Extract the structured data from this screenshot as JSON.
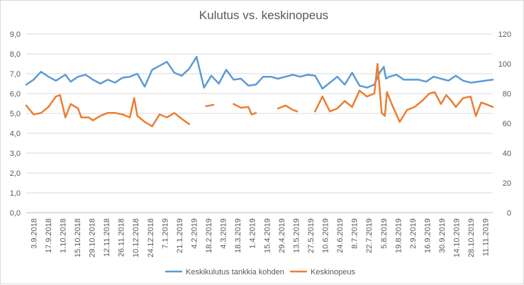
{
  "chart_data": {
    "type": "line",
    "title": "Kulutus vs. keskinopeus",
    "left_axis": {
      "ylim": [
        0,
        9
      ],
      "ticks": [
        "0,0",
        "1,0",
        "2,0",
        "3,0",
        "4,0",
        "5,0",
        "6,0",
        "7,0",
        "8,0",
        "9,0"
      ]
    },
    "right_axis": {
      "ylim": [
        0,
        120
      ],
      "ticks": [
        "0",
        "20",
        "40",
        "60",
        "80",
        "100",
        "120"
      ]
    },
    "x_tick_labels": [
      "3.9.2018",
      "17.9.2018",
      "1.10.2018",
      "15.10.2018",
      "29.10.2018",
      "12.11.2018",
      "26.11.2018",
      "10.12.2018",
      "24.12.2018",
      "7.1.2019",
      "21.1.2019",
      "4.2.2019",
      "18.2.2019",
      "4.3.2019",
      "18.3.2019",
      "1.4.2019",
      "15.4.2019",
      "29.4.2019",
      "13.5.2019",
      "27.5.2019",
      "10.6.2019",
      "24.6.2019",
      "8.7.2019",
      "22.7.2019",
      "5.8.2019",
      "19.8.2019",
      "2.9.2019",
      "16.9.2019",
      "30.9.2019",
      "14.10.2019",
      "28.10.2019",
      "11.11.2019"
    ],
    "x_range": [
      "3.9.2018",
      "18.11.2019"
    ],
    "grid": "horizontal",
    "legend_position": "bottom",
    "series": [
      {
        "name": "Keskikulutus tankkia kohden",
        "axis": "left",
        "color": "#5b9bd5",
        "points": [
          [
            "3.9.2018",
            6.45
          ],
          [
            "10.9.2018",
            6.7
          ],
          [
            "17.9.2018",
            7.1
          ],
          [
            "24.9.2018",
            6.85
          ],
          [
            "1.10.2018",
            6.65
          ],
          [
            "10.10.2018",
            6.95
          ],
          [
            "15.10.2018",
            6.6
          ],
          [
            "22.10.2018",
            6.85
          ],
          [
            "29.10.2018",
            6.95
          ],
          [
            "5.11.2018",
            6.7
          ],
          [
            "12.11.2018",
            6.5
          ],
          [
            "19.11.2018",
            6.7
          ],
          [
            "26.11.2018",
            6.55
          ],
          [
            "3.12.2018",
            6.8
          ],
          [
            "10.12.2018",
            6.85
          ],
          [
            "17.12.2018",
            7.0
          ],
          [
            "24.12.2018",
            6.35
          ],
          [
            "31.12.2018",
            7.2
          ],
          [
            "7.1.2019",
            7.4
          ],
          [
            "14.1.2019",
            7.6
          ],
          [
            "21.1.2019",
            7.05
          ],
          [
            "28.1.2019",
            6.9
          ],
          [
            "4.2.2019",
            7.25
          ],
          [
            "11.2.2019",
            7.85
          ],
          [
            "18.2.2019",
            6.3
          ],
          [
            "25.2.2019",
            6.9
          ],
          [
            "4.3.2019",
            6.5
          ],
          [
            "11.3.2019",
            7.2
          ],
          [
            "18.3.2019",
            6.7
          ],
          [
            "25.3.2019",
            6.75
          ],
          [
            "1.4.2019",
            6.4
          ],
          [
            "8.4.2019",
            6.45
          ],
          [
            "15.4.2019",
            6.85
          ],
          [
            "22.4.2019",
            6.85
          ],
          [
            "29.4.2019",
            6.75
          ],
          [
            "6.5.2019",
            6.85
          ],
          [
            "13.5.2019",
            6.95
          ],
          [
            "20.5.2019",
            6.85
          ],
          [
            "27.5.2019",
            6.95
          ],
          [
            "3.6.2019",
            6.9
          ],
          [
            "10.6.2019",
            6.25
          ],
          [
            "17.6.2019",
            6.55
          ],
          [
            "24.6.2019",
            6.85
          ],
          [
            "1.7.2019",
            6.45
          ],
          [
            "8.7.2019",
            7.05
          ],
          [
            "15.7.2019",
            6.4
          ],
          [
            "22.7.2019",
            6.3
          ],
          [
            "29.7.2019",
            6.45
          ],
          [
            "3.8.2019",
            7.05
          ],
          [
            "7.8.2019",
            7.35
          ],
          [
            "9.8.2019",
            6.75
          ],
          [
            "12.8.2019",
            6.85
          ],
          [
            "19.8.2019",
            6.95
          ],
          [
            "26.8.2019",
            6.7
          ],
          [
            "2.9.2019",
            6.7
          ],
          [
            "9.9.2019",
            6.7
          ],
          [
            "16.9.2019",
            6.6
          ],
          [
            "23.9.2019",
            6.85
          ],
          [
            "30.9.2019",
            6.75
          ],
          [
            "7.10.2019",
            6.65
          ],
          [
            "14.10.2019",
            6.9
          ],
          [
            "21.10.2019",
            6.65
          ],
          [
            "28.10.2019",
            6.55
          ],
          [
            "4.11.2019",
            6.6
          ],
          [
            "11.11.2019",
            6.65
          ],
          [
            "18.11.2019",
            6.7
          ]
        ]
      },
      {
        "name": "Keskinopeus",
        "axis": "right",
        "color": "#ed7d31",
        "points": [
          [
            "3.9.2018",
            72
          ],
          [
            "10.9.2018",
            66
          ],
          [
            "17.9.2018",
            67
          ],
          [
            "24.9.2018",
            71
          ],
          [
            "1.10.2018",
            78
          ],
          [
            "5.10.2018",
            79
          ],
          [
            "10.10.2018",
            64
          ],
          [
            "15.10.2018",
            73
          ],
          [
            "22.10.2018",
            70
          ],
          [
            "25.10.2018",
            64
          ],
          [
            "1.11.2018",
            64
          ],
          [
            "5.11.2018",
            62
          ],
          [
            "12.11.2018",
            65
          ],
          [
            "19.11.2018",
            67
          ],
          [
            "26.11.2018",
            67
          ],
          [
            "3.12.2018",
            66
          ],
          [
            "10.12.2018",
            64
          ],
          [
            "14.12.2018",
            77
          ],
          [
            "17.12.2018",
            65
          ],
          [
            "24.12.2018",
            61
          ],
          [
            "31.12.2018",
            58
          ],
          [
            "7.1.2019",
            66
          ],
          [
            "14.1.2019",
            64
          ],
          [
            "21.1.2019",
            67
          ],
          [
            "28.1.2019",
            63
          ],
          [
            "4.2.2019",
            59.5
          ],
          null,
          [
            "20.2.2019",
            71.5
          ],
          [
            "27.2.2019",
            72.5
          ],
          null,
          [
            "18.3.2019",
            73
          ],
          [
            "25.3.2019",
            70.5
          ],
          [
            "1.4.2019",
            71
          ],
          [
            "4.4.2019",
            66
          ],
          [
            "8.4.2019",
            67
          ],
          null,
          [
            "15.4.2019",
            68
          ],
          null,
          [
            "29.4.2019",
            70
          ],
          [
            "6.5.2019",
            72
          ],
          [
            "13.5.2019",
            69
          ],
          [
            "17.5.2019",
            68
          ],
          null,
          [
            "3.6.2019",
            68
          ],
          [
            "10.6.2019",
            78
          ],
          [
            "17.6.2019",
            68
          ],
          [
            "24.6.2019",
            70
          ],
          [
            "1.7.2019",
            75
          ],
          [
            "8.7.2019",
            71
          ],
          [
            "15.7.2019",
            82
          ],
          [
            "22.7.2019",
            78
          ],
          [
            "29.7.2019",
            80
          ],
          [
            "1.8.2019",
            100
          ],
          [
            "5.8.2019",
            67
          ],
          [
            "8.8.2019",
            65
          ],
          [
            "10.8.2019",
            81
          ],
          [
            "15.8.2019",
            72
          ],
          [
            "22.8.2019",
            61
          ],
          [
            "29.8.2019",
            69
          ],
          [
            "5.9.2019",
            71
          ],
          [
            "12.9.2019",
            75
          ],
          [
            "19.9.2019",
            80
          ],
          [
            "24.9.2019",
            81
          ],
          [
            "30.9.2019",
            73
          ],
          [
            "5.10.2019",
            79
          ],
          [
            "10.10.2019",
            75
          ],
          [
            "14.10.2019",
            71
          ],
          [
            "21.10.2019",
            77
          ],
          [
            "28.10.2019",
            78
          ],
          [
            "2.11.2019",
            65
          ],
          [
            "7.11.2019",
            74
          ],
          [
            "11.11.2019",
            73
          ],
          [
            "18.11.2019",
            71
          ]
        ]
      }
    ]
  }
}
